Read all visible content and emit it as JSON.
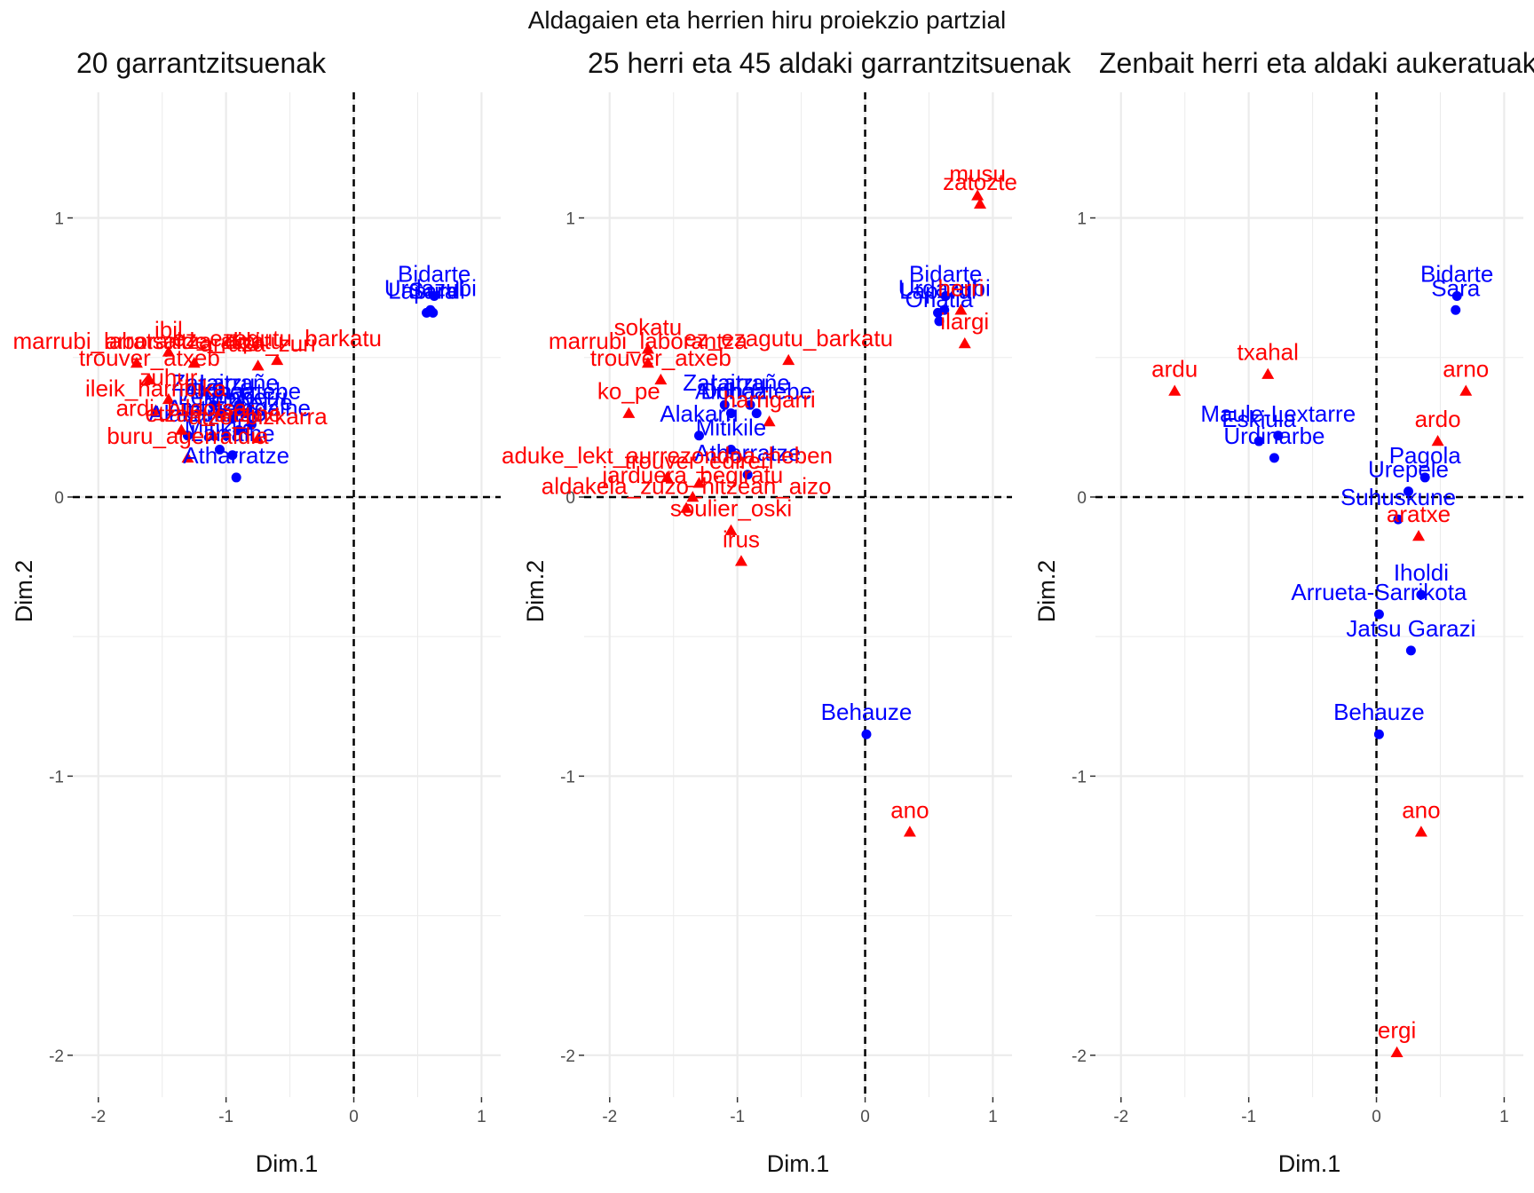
{
  "figure_title": "Aldagaien eta herrien hiru proiekzio partzial",
  "colors": {
    "herri": "#0000ff",
    "aldaki": "#ff0000",
    "grid": "#ebebeb",
    "refline": "#000000"
  },
  "chart_data": [
    {
      "type": "scatter",
      "title": "20 garrantzitsuenak",
      "xlabel": "Dim.1",
      "ylabel": "Dim.2",
      "xlim": [
        -2.2,
        1.15
      ],
      "ylim": [
        -2.15,
        1.45
      ],
      "xticks": [
        -2,
        -1,
        0,
        1
      ],
      "yticks": [
        -2,
        -1,
        0,
        1
      ],
      "grid": true,
      "herriak": [
        {
          "label": "Bidarte",
          "x": 0.63,
          "y": 0.72
        },
        {
          "label": "Sara",
          "x": 0.62,
          "y": 0.66
        },
        {
          "label": "Urdazubi",
          "x": 0.6,
          "y": 0.67
        },
        {
          "label": "Lapurdi",
          "x": 0.57,
          "y": 0.66
        },
        {
          "label": "Zaraitzu",
          "x": -1.1,
          "y": 0.33
        },
        {
          "label": "Ainhoa",
          "x": -1.05,
          "y": 0.3
        },
        {
          "label": "Lekunberri",
          "x": -0.95,
          "y": 0.28
        },
        {
          "label": "Larrañe",
          "x": -0.9,
          "y": 0.33
        },
        {
          "label": "Donaztebe",
          "x": -0.85,
          "y": 0.3
        },
        {
          "label": "Ezpeize",
          "x": -0.8,
          "y": 0.26
        },
        {
          "label": "Zuraide",
          "x": -1.0,
          "y": 0.22
        },
        {
          "label": "Mitikile",
          "x": -1.05,
          "y": 0.17
        },
        {
          "label": "Alakarri",
          "x": -1.3,
          "y": 0.22
        },
        {
          "label": "Larraine",
          "x": -0.95,
          "y": 0.15
        },
        {
          "label": "Aintziolagaine",
          "x": -0.9,
          "y": 0.24
        },
        {
          "label": "Atharratze",
          "x": -0.92,
          "y": 0.07
        }
      ],
      "aldakiak": [
        {
          "label": "trouver_atxeb",
          "x": -1.6,
          "y": 0.42
        },
        {
          "label": "zuhur",
          "x": -1.45,
          "y": 0.35
        },
        {
          "label": "ibil",
          "x": -1.45,
          "y": 0.52
        },
        {
          "label": "arratsalde_aldatu",
          "x": -1.25,
          "y": 0.48
        },
        {
          "label": "marrubi_laborantza_ttipi",
          "x": -1.7,
          "y": 0.48
        },
        {
          "label": "ez_ezagutu_barkatu",
          "x": -0.6,
          "y": 0.49
        },
        {
          "label": "arraza_zuri",
          "x": -0.75,
          "y": 0.47
        },
        {
          "label": "ileik_harribika",
          "x": -1.55,
          "y": 0.31
        },
        {
          "label": "etzan_aitzine",
          "x": -1.1,
          "y": 0.22
        },
        {
          "label": "ardi_bildotsa",
          "x": -1.35,
          "y": 0.24
        },
        {
          "label": "atze_bizkarra",
          "x": -0.75,
          "y": 0.21
        },
        {
          "label": "buru_agerraldia",
          "x": -1.3,
          "y": 0.14
        }
      ]
    },
    {
      "type": "scatter",
      "title": "25 herri eta 45 aldaki garrantzitsuenak",
      "xlabel": "Dim.1",
      "ylabel": "Dim.2",
      "xlim": [
        -2.2,
        1.15
      ],
      "ylim": [
        -2.15,
        1.45
      ],
      "xticks": [
        -2,
        -1,
        0,
        1
      ],
      "yticks": [
        -2,
        -1,
        0,
        1
      ],
      "grid": true,
      "herriak": [
        {
          "label": "Bidarte",
          "x": 0.63,
          "y": 0.72
        },
        {
          "label": "Urdazubi",
          "x": 0.62,
          "y": 0.67
        },
        {
          "label": "Lapurdi",
          "x": 0.57,
          "y": 0.66
        },
        {
          "label": "Oñatia",
          "x": 0.58,
          "y": 0.63
        },
        {
          "label": "Behauze",
          "x": 0.01,
          "y": -0.85
        },
        {
          "label": "Zaraitzu",
          "x": -1.1,
          "y": 0.33
        },
        {
          "label": "Ainhoa",
          "x": -1.05,
          "y": 0.3
        },
        {
          "label": "Donaztebe",
          "x": -0.85,
          "y": 0.3
        },
        {
          "label": "Larrañe",
          "x": -0.9,
          "y": 0.33
        },
        {
          "label": "Mitikile",
          "x": -1.05,
          "y": 0.17
        },
        {
          "label": "Alakarri",
          "x": -1.3,
          "y": 0.22
        },
        {
          "label": "Atharratze",
          "x": -0.92,
          "y": 0.08
        }
      ],
      "aldakiak": [
        {
          "label": "musu",
          "x": 0.88,
          "y": 1.08
        },
        {
          "label": "zatozte",
          "x": 0.9,
          "y": 1.05
        },
        {
          "label": "ilargi",
          "x": 0.78,
          "y": 0.55
        },
        {
          "label": "herri",
          "x": 0.75,
          "y": 0.67
        },
        {
          "label": "ano",
          "x": 0.35,
          "y": -1.2
        },
        {
          "label": "ez_ezagutu_barkatu",
          "x": -0.6,
          "y": 0.49
        },
        {
          "label": "sokatu",
          "x": -1.7,
          "y": 0.53
        },
        {
          "label": "trouver_atxeb",
          "x": -1.6,
          "y": 0.42
        },
        {
          "label": "marrubi_laborantza",
          "x": -1.7,
          "y": 0.48
        },
        {
          "label": "aduke_lekt_aurrezondoa_heben",
          "x": -1.55,
          "y": 0.07
        },
        {
          "label": "trouver_edireñ",
          "x": -1.3,
          "y": 0.05
        },
        {
          "label": "jarduera_begiratu",
          "x": -1.35,
          "y": 0.0
        },
        {
          "label": "aldakela_zuzo_hitzean_aizo",
          "x": -1.4,
          "y": -0.04
        },
        {
          "label": "soulier_oski",
          "x": -1.05,
          "y": -0.12
        },
        {
          "label": "irus",
          "x": -0.97,
          "y": -0.23
        },
        {
          "label": "ko_pe",
          "x": -1.85,
          "y": 0.3
        },
        {
          "label": "harrigarri",
          "x": -0.75,
          "y": 0.27
        }
      ]
    },
    {
      "type": "scatter",
      "title": "Zenbait herri eta aldaki aukeratuak",
      "xlabel": "Dim.1",
      "ylabel": "Dim.2",
      "xlim": [
        -2.2,
        1.15
      ],
      "ylim": [
        -2.15,
        1.45
      ],
      "xticks": [
        -2,
        -1,
        0,
        1
      ],
      "yticks": [
        -2,
        -1,
        0,
        1
      ],
      "grid": true,
      "herriak": [
        {
          "label": "Bidarte",
          "x": 0.63,
          "y": 0.72
        },
        {
          "label": "Sara",
          "x": 0.62,
          "y": 0.67
        },
        {
          "label": "Maule-Lextarre",
          "x": -0.77,
          "y": 0.22
        },
        {
          "label": "Eskiula",
          "x": -0.92,
          "y": 0.2
        },
        {
          "label": "Urdinarbe",
          "x": -0.8,
          "y": 0.14
        },
        {
          "label": "Pagola",
          "x": 0.38,
          "y": 0.07
        },
        {
          "label": "Urepele",
          "x": 0.25,
          "y": 0.02
        },
        {
          "label": "Suhuskune",
          "x": 0.17,
          "y": -0.08
        },
        {
          "label": "Iholdi",
          "x": 0.35,
          "y": -0.35
        },
        {
          "label": "Arrueta-Sarrikota",
          "x": 0.02,
          "y": -0.42
        },
        {
          "label": "Jatsu Garazi",
          "x": 0.27,
          "y": -0.55
        },
        {
          "label": "Behauze",
          "x": 0.02,
          "y": -0.85
        }
      ],
      "aldakiak": [
        {
          "label": "ardu",
          "x": -1.58,
          "y": 0.38
        },
        {
          "label": "txahal",
          "x": -0.85,
          "y": 0.44
        },
        {
          "label": "arno",
          "x": 0.7,
          "y": 0.38
        },
        {
          "label": "ardo",
          "x": 0.48,
          "y": 0.2
        },
        {
          "label": "aratxe",
          "x": 0.33,
          "y": -0.14
        },
        {
          "label": "ano",
          "x": 0.35,
          "y": -1.2
        },
        {
          "label": "ergi",
          "x": 0.16,
          "y": -1.99
        }
      ]
    }
  ]
}
